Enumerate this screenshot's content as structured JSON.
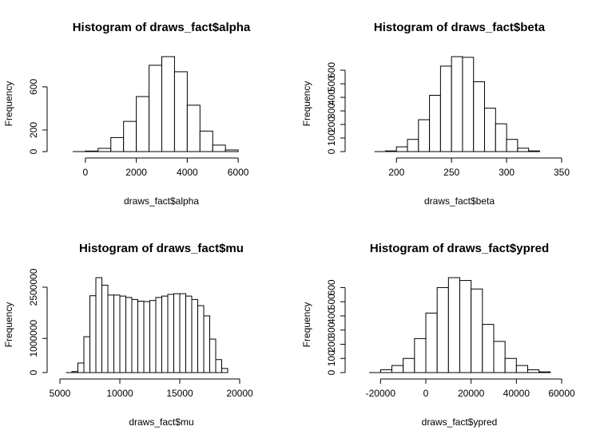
{
  "chart_data": [
    {
      "type": "bar",
      "title": "Histogram of draws_fact$alpha",
      "xlabel": "draws_fact$alpha",
      "ylabel": "Frequency",
      "bin_width": 500,
      "bin_start": -500,
      "counts": [
        0,
        5,
        30,
        130,
        280,
        510,
        800,
        880,
        740,
        430,
        190,
        60,
        15
      ],
      "xticks": [
        0,
        2000,
        4000,
        6000
      ],
      "yticks": [
        0,
        200,
        600
      ],
      "xlim": [
        -1000,
        7000
      ],
      "ylim": [
        0,
        880
      ]
    },
    {
      "type": "bar",
      "title": "Histogram of draws_fact$beta",
      "xlabel": "draws_fact$beta",
      "ylabel": "Frequency",
      "bin_width": 10,
      "bin_start": 180,
      "counts": [
        0,
        5,
        35,
        90,
        235,
        415,
        630,
        700,
        695,
        515,
        320,
        205,
        90,
        25,
        5
      ],
      "xticks": [
        200,
        250,
        300,
        350
      ],
      "yticks": [
        0,
        100,
        200,
        300,
        400,
        500,
        600
      ],
      "xlim": [
        165,
        350
      ],
      "ylim": [
        0,
        700
      ]
    },
    {
      "type": "bar",
      "title": "Histogram of draws_fact$mu",
      "xlabel": "draws_fact$mu",
      "ylabel": "Frequency",
      "bin_width": 500,
      "bin_start": 5500,
      "counts": [
        0,
        30000,
        280000,
        1050000,
        2250000,
        2780000,
        2560000,
        2270000,
        2270000,
        2240000,
        2200000,
        2140000,
        2090000,
        2080000,
        2110000,
        2200000,
        2240000,
        2290000,
        2310000,
        2310000,
        2240000,
        2140000,
        1960000,
        1660000,
        980000,
        380000,
        120000
      ],
      "xticks": [
        5000,
        10000,
        15000,
        20000
      ],
      "yticks": [
        0,
        1000000,
        2500000
      ],
      "ytick_labels": [
        "0",
        "1000000",
        "2500000"
      ],
      "xlim": [
        5000,
        22000
      ],
      "ylim": [
        0,
        2780000
      ]
    },
    {
      "type": "bar",
      "title": "Histogram of draws_fact$ypred",
      "xlabel": "draws_fact$ypred",
      "ylabel": "Frequency",
      "bin_width": 5000,
      "bin_start": -25000,
      "counts": [
        0,
        20,
        50,
        100,
        240,
        420,
        600,
        670,
        650,
        590,
        340,
        220,
        100,
        50,
        20,
        5
      ],
      "xticks": [
        -20000,
        0,
        20000,
        40000,
        60000
      ],
      "yticks": [
        0,
        100,
        200,
        300,
        400,
        500,
        600
      ],
      "xlim": [
        -30000,
        60000
      ],
      "ylim": [
        0,
        670
      ]
    }
  ]
}
